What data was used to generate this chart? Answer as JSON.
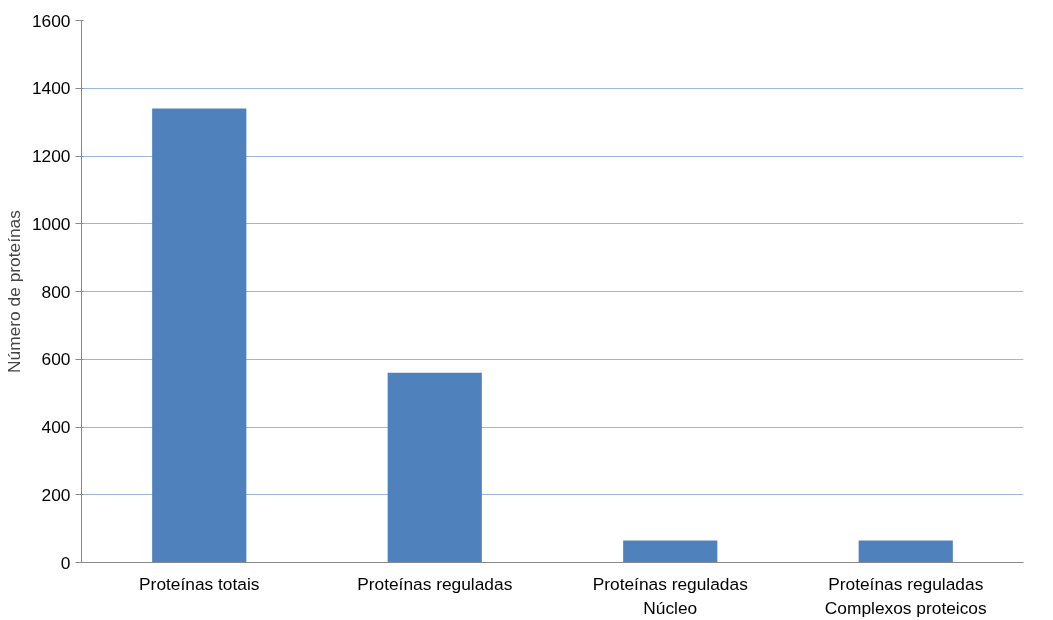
{
  "chart_data": {
    "type": "bar",
    "ylabel": "Número de proteínas",
    "categories": [
      "Proteínas totais",
      "Proteínas reguladas",
      "Proteínas reguladas\nNúcleo",
      "Proteínas reguladas\nComplexos proteicos"
    ],
    "values": [
      1340,
      560,
      65,
      65
    ],
    "color": "#4f81bd",
    "ylim": [
      0,
      1600
    ],
    "yticks": [
      0,
      200,
      400,
      600,
      800,
      1000,
      1200,
      1400,
      1600
    ],
    "grid": "y"
  }
}
